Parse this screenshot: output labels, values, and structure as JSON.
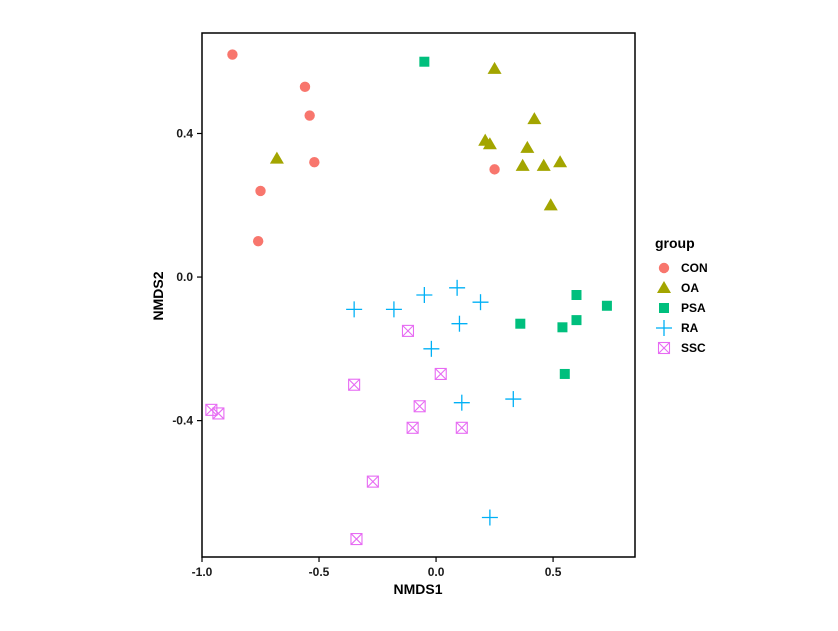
{
  "chart_data": {
    "type": "scatter",
    "xlabel": "NMDS1",
    "ylabel": "NMDS2",
    "xlim": [
      -1.0,
      0.85
    ],
    "ylim": [
      -0.78,
      0.68
    ],
    "x_ticks": [
      -1.0,
      -0.5,
      0.0,
      0.5
    ],
    "x_tick_labels": [
      "-1.0",
      "-0.5",
      "0.0",
      "0.5"
    ],
    "y_ticks": [
      -0.4,
      0.0,
      0.4
    ],
    "y_tick_labels": [
      "-0.4",
      "0.0",
      "0.4"
    ],
    "grid": false,
    "legend": {
      "title": "group",
      "position": "right"
    },
    "series": [
      {
        "name": "CON",
        "marker": "circle",
        "color": "#F8766D",
        "points": [
          {
            "x": -0.87,
            "y": 0.62
          },
          {
            "x": -0.56,
            "y": 0.53
          },
          {
            "x": -0.54,
            "y": 0.45
          },
          {
            "x": -0.52,
            "y": 0.32
          },
          {
            "x": -0.75,
            "y": 0.24
          },
          {
            "x": -0.76,
            "y": 0.1
          },
          {
            "x": 0.25,
            "y": 0.3
          }
        ]
      },
      {
        "name": "OA",
        "marker": "triangle",
        "color": "#A3A500",
        "points": [
          {
            "x": 0.25,
            "y": 0.58
          },
          {
            "x": 0.42,
            "y": 0.44
          },
          {
            "x": 0.21,
            "y": 0.38
          },
          {
            "x": 0.23,
            "y": 0.37
          },
          {
            "x": 0.39,
            "y": 0.36
          },
          {
            "x": 0.37,
            "y": 0.31
          },
          {
            "x": 0.46,
            "y": 0.31
          },
          {
            "x": 0.53,
            "y": 0.32
          },
          {
            "x": 0.49,
            "y": 0.2
          },
          {
            "x": -0.68,
            "y": 0.33
          }
        ]
      },
      {
        "name": "PSA",
        "marker": "square",
        "color": "#00BF7D",
        "points": [
          {
            "x": -0.05,
            "y": 0.6
          },
          {
            "x": 0.6,
            "y": -0.05
          },
          {
            "x": 0.73,
            "y": -0.08
          },
          {
            "x": 0.6,
            "y": -0.12
          },
          {
            "x": 0.36,
            "y": -0.13
          },
          {
            "x": 0.54,
            "y": -0.14
          },
          {
            "x": 0.55,
            "y": -0.27
          }
        ]
      },
      {
        "name": "RA",
        "marker": "plus",
        "color": "#00B0F6",
        "points": [
          {
            "x": -0.35,
            "y": -0.09
          },
          {
            "x": -0.18,
            "y": -0.09
          },
          {
            "x": -0.05,
            "y": -0.05
          },
          {
            "x": 0.09,
            "y": -0.03
          },
          {
            "x": 0.19,
            "y": -0.07
          },
          {
            "x": 0.1,
            "y": -0.13
          },
          {
            "x": -0.02,
            "y": -0.2
          },
          {
            "x": 0.11,
            "y": -0.35
          },
          {
            "x": 0.33,
            "y": -0.34
          },
          {
            "x": 0.23,
            "y": -0.67
          }
        ]
      },
      {
        "name": "SSC",
        "marker": "boxx",
        "color": "#E76BF3",
        "points": [
          {
            "x": -0.12,
            "y": -0.15
          },
          {
            "x": 0.02,
            "y": -0.27
          },
          {
            "x": -0.35,
            "y": -0.3
          },
          {
            "x": -0.07,
            "y": -0.36
          },
          {
            "x": -0.1,
            "y": -0.42
          },
          {
            "x": 0.11,
            "y": -0.42
          },
          {
            "x": -0.96,
            "y": -0.37
          },
          {
            "x": -0.93,
            "y": -0.38
          },
          {
            "x": -0.27,
            "y": -0.57
          },
          {
            "x": -0.34,
            "y": -0.73
          }
        ]
      }
    ]
  }
}
